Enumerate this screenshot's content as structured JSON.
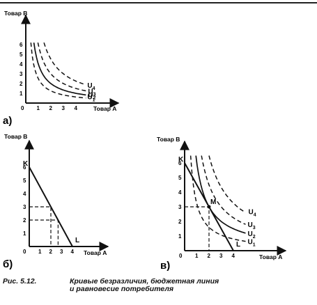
{
  "figure": {
    "caption_number": "Рис. 5.12.",
    "caption_text": "Кривые безразличия, бюджетная линия\nи равновесие потребителя"
  },
  "panels": [
    {
      "letter": "а)",
      "y_title": "Товар В",
      "x_title": "Товар А",
      "origin": "0",
      "x_ticks": [
        "1",
        "2",
        "3",
        "4"
      ],
      "y_ticks": [
        "1",
        "2",
        "3",
        "4",
        "5",
        "6"
      ],
      "curves": [
        {
          "name": "U",
          "sub": "1",
          "style": "dashed",
          "k": 2.5
        },
        {
          "name": "U",
          "sub": "2",
          "style": "solid",
          "k": 4
        },
        {
          "name": "U",
          "sub": "3",
          "style": "dashed",
          "k": 6
        },
        {
          "name": "U",
          "sub": "4",
          "style": "dashed",
          "k": 9
        }
      ]
    },
    {
      "letter": "б)",
      "y_title": "Товар В",
      "x_title": "Товар А",
      "origin": "0",
      "x_ticks": [
        "1",
        "2",
        "3",
        "4"
      ],
      "y_ticks": [
        "1",
        "2",
        "3",
        "4",
        "5",
        "6"
      ],
      "budget_line": {
        "k_label": "K",
        "l_label": "L",
        "y_intercept": 6,
        "x_intercept": 4
      },
      "guides": [
        {
          "x": 2,
          "y": 3
        },
        {
          "x": 2.67,
          "y": 2
        }
      ]
    },
    {
      "letter": "в)",
      "y_title": "Товар В",
      "x_title": "Товар А",
      "origin": "0",
      "x_ticks": [
        "1",
        "2",
        "3",
        "4"
      ],
      "y_ticks": [
        "1",
        "2",
        "3",
        "4",
        "5",
        "6"
      ],
      "budget_line": {
        "k_label": "K",
        "l_label": "L",
        "y_intercept": 6,
        "x_intercept": 4
      },
      "equilibrium": {
        "label": "M",
        "x": 2,
        "y": 3
      },
      "curves": [
        {
          "name": "U",
          "sub": "1",
          "style": "dashed",
          "k": 3.2
        },
        {
          "name": "U",
          "sub": "2",
          "style": "solid",
          "k": 6
        },
        {
          "name": "U",
          "sub": "3",
          "style": "dashed",
          "k": 9
        },
        {
          "name": "U",
          "sub": "4",
          "style": "dashed",
          "k": 13
        }
      ]
    }
  ]
}
